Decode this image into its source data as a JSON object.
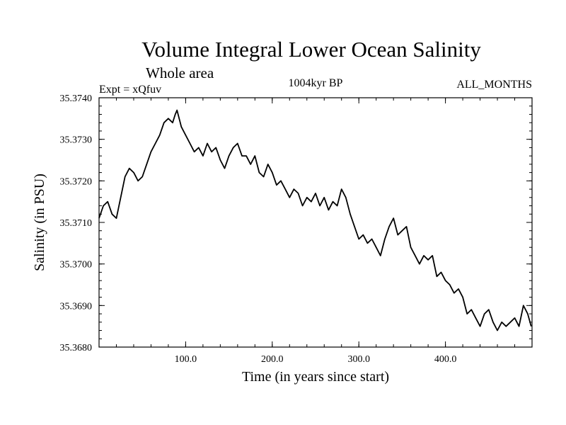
{
  "chart_data": {
    "type": "line",
    "title": "Volume Integral Lower Ocean Salinity",
    "subtitle": "Whole area",
    "annotations": {
      "left": "Expt = xQfuv",
      "center": "1004kyr BP",
      "right": "ALL_MONTHS"
    },
    "xlabel": "Time (in years since start)",
    "ylabel": "Salinity (in PSU)",
    "xlim": [
      0,
      500
    ],
    "ylim": [
      35.368,
      35.374
    ],
    "xticks": [
      100,
      200,
      300,
      400
    ],
    "xtick_labels": [
      "100.0",
      "200.0",
      "300.0",
      "400.0"
    ],
    "yticks": [
      35.368,
      35.369,
      35.37,
      35.371,
      35.372,
      35.373,
      35.374
    ],
    "ytick_labels": [
      "35.3680",
      "35.3690",
      "35.3700",
      "35.3710",
      "35.3720",
      "35.3730",
      "35.3740"
    ],
    "grid": false,
    "series": [
      {
        "name": "Salinity",
        "x": [
          0,
          5,
          10,
          15,
          20,
          25,
          30,
          35,
          40,
          45,
          50,
          55,
          60,
          65,
          70,
          75,
          80,
          85,
          88,
          90,
          95,
          100,
          105,
          110,
          115,
          120,
          125,
          130,
          135,
          140,
          145,
          150,
          155,
          160,
          165,
          170,
          175,
          180,
          185,
          190,
          195,
          200,
          205,
          210,
          215,
          220,
          225,
          230,
          235,
          240,
          245,
          250,
          255,
          260,
          265,
          270,
          275,
          280,
          285,
          290,
          295,
          300,
          305,
          310,
          315,
          320,
          325,
          330,
          335,
          340,
          345,
          350,
          355,
          360,
          365,
          370,
          375,
          380,
          385,
          390,
          395,
          400,
          405,
          410,
          415,
          420,
          425,
          430,
          435,
          440,
          445,
          450,
          455,
          460,
          465,
          470,
          475,
          480,
          485,
          490,
          495,
          499
        ],
        "values": [
          35.3711,
          35.3714,
          35.3715,
          35.3712,
          35.3711,
          35.3716,
          35.3721,
          35.3723,
          35.3722,
          35.372,
          35.3721,
          35.3724,
          35.3727,
          35.3729,
          35.3731,
          35.3734,
          35.3735,
          35.3734,
          35.3736,
          35.3737,
          35.3733,
          35.3731,
          35.3729,
          35.3727,
          35.3728,
          35.3726,
          35.3729,
          35.3727,
          35.3728,
          35.3725,
          35.3723,
          35.3726,
          35.3728,
          35.3729,
          35.3726,
          35.3726,
          35.3724,
          35.3726,
          35.3722,
          35.3721,
          35.3724,
          35.3722,
          35.3719,
          35.372,
          35.3718,
          35.3716,
          35.3718,
          35.3717,
          35.3714,
          35.3716,
          35.3715,
          35.3717,
          35.3714,
          35.3716,
          35.3713,
          35.3715,
          35.3714,
          35.3718,
          35.3716,
          35.3712,
          35.3709,
          35.3706,
          35.3707,
          35.3705,
          35.3706,
          35.3704,
          35.3702,
          35.3706,
          35.3709,
          35.3711,
          35.3707,
          35.3708,
          35.3709,
          35.3704,
          35.3702,
          35.37,
          35.3702,
          35.3701,
          35.3702,
          35.3697,
          35.3698,
          35.3696,
          35.3695,
          35.3693,
          35.3694,
          35.3692,
          35.3688,
          35.3689,
          35.3687,
          35.3685,
          35.3688,
          35.3689,
          35.3686,
          35.3684,
          35.3686,
          35.3685,
          35.3686,
          35.3687,
          35.3685,
          35.369,
          35.3688,
          35.3685
        ]
      }
    ]
  }
}
